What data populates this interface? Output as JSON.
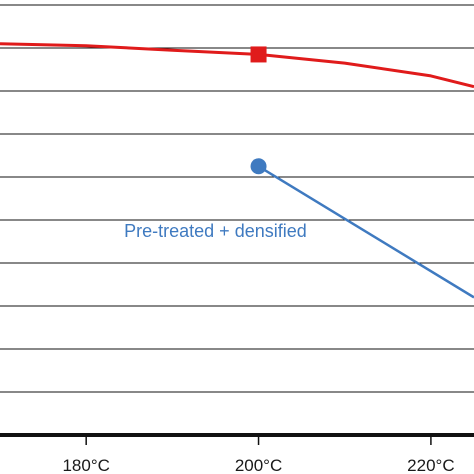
{
  "chart_data": {
    "type": "line",
    "title": "",
    "xlabel": "",
    "ylabel": "",
    "x_unit": "°C",
    "xlim": [
      170,
      225
    ],
    "ylim": [
      0,
      10
    ],
    "grid": "horizontal",
    "x_ticks": [
      {
        "value": 180,
        "label": "180°C"
      },
      {
        "value": 200,
        "label": "200°C"
      },
      {
        "value": 220,
        "label": "220°C"
      }
    ],
    "series": [
      {
        "name": "",
        "color": "#e01b1b",
        "marker": "square",
        "marker_x": 200,
        "points": [
          {
            "x": 170,
            "y": 9.1
          },
          {
            "x": 180,
            "y": 9.05
          },
          {
            "x": 190,
            "y": 8.95
          },
          {
            "x": 200,
            "y": 8.85
          },
          {
            "x": 210,
            "y": 8.65
          },
          {
            "x": 220,
            "y": 8.35
          },
          {
            "x": 225,
            "y": 8.1
          }
        ]
      },
      {
        "name": "Pre-treated + densified",
        "color": "#3f7ac0",
        "marker": "circle",
        "marker_x": 200,
        "points": [
          {
            "x": 200,
            "y": 6.25
          },
          {
            "x": 225,
            "y": 3.2
          }
        ]
      }
    ],
    "annotations": [
      {
        "text": "Pre-treated + densified",
        "x": 195,
        "y": 4.6,
        "color": "#3f7ac0"
      }
    ]
  }
}
